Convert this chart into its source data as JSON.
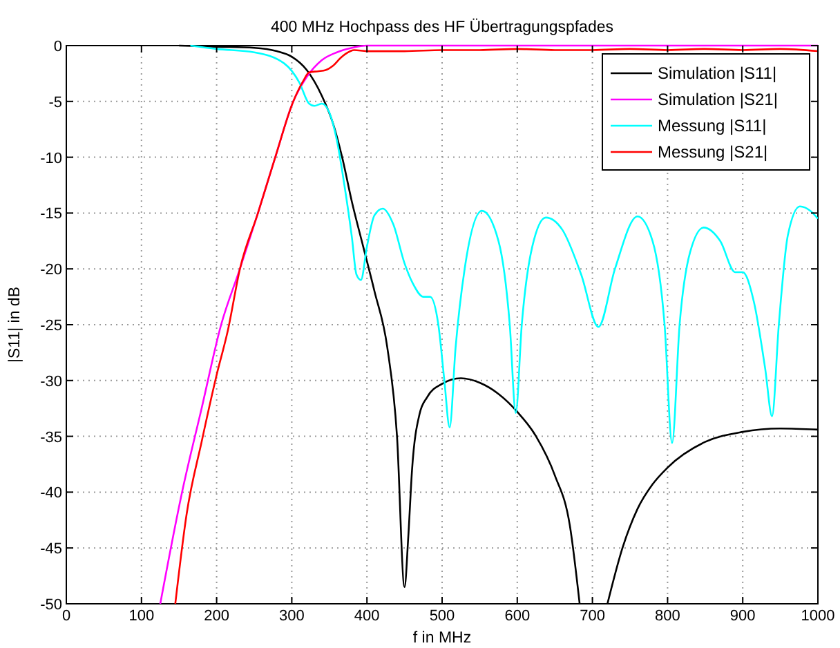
{
  "chart_data": {
    "type": "line",
    "title": "400 MHz Hochpass des HF Übertragungspfades",
    "xlabel": "f in MHz",
    "ylabel": "|S11| in dB",
    "xlim": [
      0,
      1000
    ],
    "ylim": [
      -50,
      0
    ],
    "xticks": [
      0,
      100,
      200,
      300,
      400,
      500,
      600,
      700,
      800,
      900,
      1000
    ],
    "yticks": [
      -50,
      -45,
      -40,
      -35,
      -30,
      -25,
      -20,
      -15,
      -10,
      -5,
      0
    ],
    "grid": true,
    "legend": "top right",
    "line_style": "solid",
    "marker": "none",
    "series": [
      {
        "name": "Simulation |S11|",
        "color": "#000000",
        "x": [
          150,
          200,
          250,
          280,
          300,
          320,
          340,
          355,
          367,
          380,
          395,
          410,
          427,
          440,
          450,
          455,
          460,
          470,
          480,
          500,
          525,
          550,
          575,
          600,
          625,
          650,
          670,
          683,
          700,
          720,
          740,
          760,
          780,
          800,
          850,
          900,
          950,
          1000
        ],
        "values": [
          0,
          -0.1,
          -0.2,
          -0.5,
          -1,
          -2.2,
          -4.5,
          -7,
          -10,
          -14,
          -18,
          -22,
          -27,
          -35,
          -48.5,
          -44,
          -38,
          -33,
          -31.5,
          -30.3,
          -29.8,
          -30.2,
          -31.2,
          -32.8,
          -35,
          -38.5,
          -43,
          -50,
          null,
          -50,
          -45,
          -41.5,
          -39.3,
          -37.8,
          -35.5,
          -34.6,
          -34.3,
          -34.4
        ]
      },
      {
        "name": "Simulation |S21|",
        "color": "#ff00ff",
        "x": [
          125,
          154,
          180,
          206,
          231,
          255,
          278,
          302,
          320,
          340,
          360,
          380,
          400,
          500,
          600,
          700,
          800,
          900,
          1000
        ],
        "values": [
          -50,
          -40,
          -32.5,
          -25,
          -20,
          -15,
          -10,
          -5,
          -2.8,
          -1.3,
          -0.6,
          -0.2,
          0,
          0,
          0,
          0,
          0,
          0,
          0
        ]
      },
      {
        "name": "Messung |S11|",
        "color": "#00ffff",
        "x": [
          165,
          200,
          250,
          290,
          310,
          323,
          330,
          340,
          350,
          360,
          370,
          380,
          386,
          392,
          400,
          410,
          421,
          435,
          450,
          461,
          475,
          484,
          495,
          503,
          510,
          518,
          530,
          553,
          575,
          590,
          598,
          606,
          620,
          638,
          660,
          685,
          708,
          730,
          760,
          780,
          796,
          806,
          816,
          830,
          848,
          870,
          890,
          900,
          915,
          930,
          939,
          948,
          960,
          976,
          990,
          1000
        ],
        "values": [
          0,
          -0.3,
          -0.6,
          -1.6,
          -3.3,
          -5.2,
          -5.4,
          -5.2,
          -6,
          -8.5,
          -12.5,
          -17.2,
          -20.5,
          -21,
          -18,
          -15.2,
          -14.6,
          -16,
          -19.5,
          -21.3,
          -22.5,
          -22.5,
          -25,
          -30,
          -34.2,
          -27,
          -20,
          -14.8,
          -17.5,
          -25,
          -32.9,
          -25,
          -18,
          -15.4,
          -16.5,
          -20.5,
          -25.2,
          -20,
          -15.3,
          -17.5,
          -25,
          -35.6,
          -25,
          -18.5,
          -16.3,
          -17.5,
          -20.3,
          -20.3,
          -23,
          -29,
          -33.2,
          -25,
          -17,
          -14.4,
          -14.8,
          -15.5
        ]
      },
      {
        "name": "Messung |S21|",
        "color": "#ff0000",
        "x": [
          145,
          160,
          180,
          200,
          215,
          231,
          255,
          278,
          302,
          315,
          323,
          335,
          345,
          355,
          365,
          375,
          383,
          400,
          450,
          500,
          550,
          600,
          650,
          700,
          750,
          800,
          850,
          900,
          950,
          1000
        ],
        "values": [
          -50,
          -42,
          -35.5,
          -29.5,
          -25.5,
          -20,
          -15,
          -10,
          -5,
          -3.2,
          -2.4,
          -2.3,
          -2.2,
          -1.8,
          -1.1,
          -0.6,
          -0.4,
          -0.5,
          -0.5,
          -0.4,
          -0.4,
          -0.3,
          -0.4,
          -0.4,
          -0.3,
          -0.4,
          -0.3,
          -0.4,
          -0.3,
          -0.5
        ]
      }
    ]
  }
}
